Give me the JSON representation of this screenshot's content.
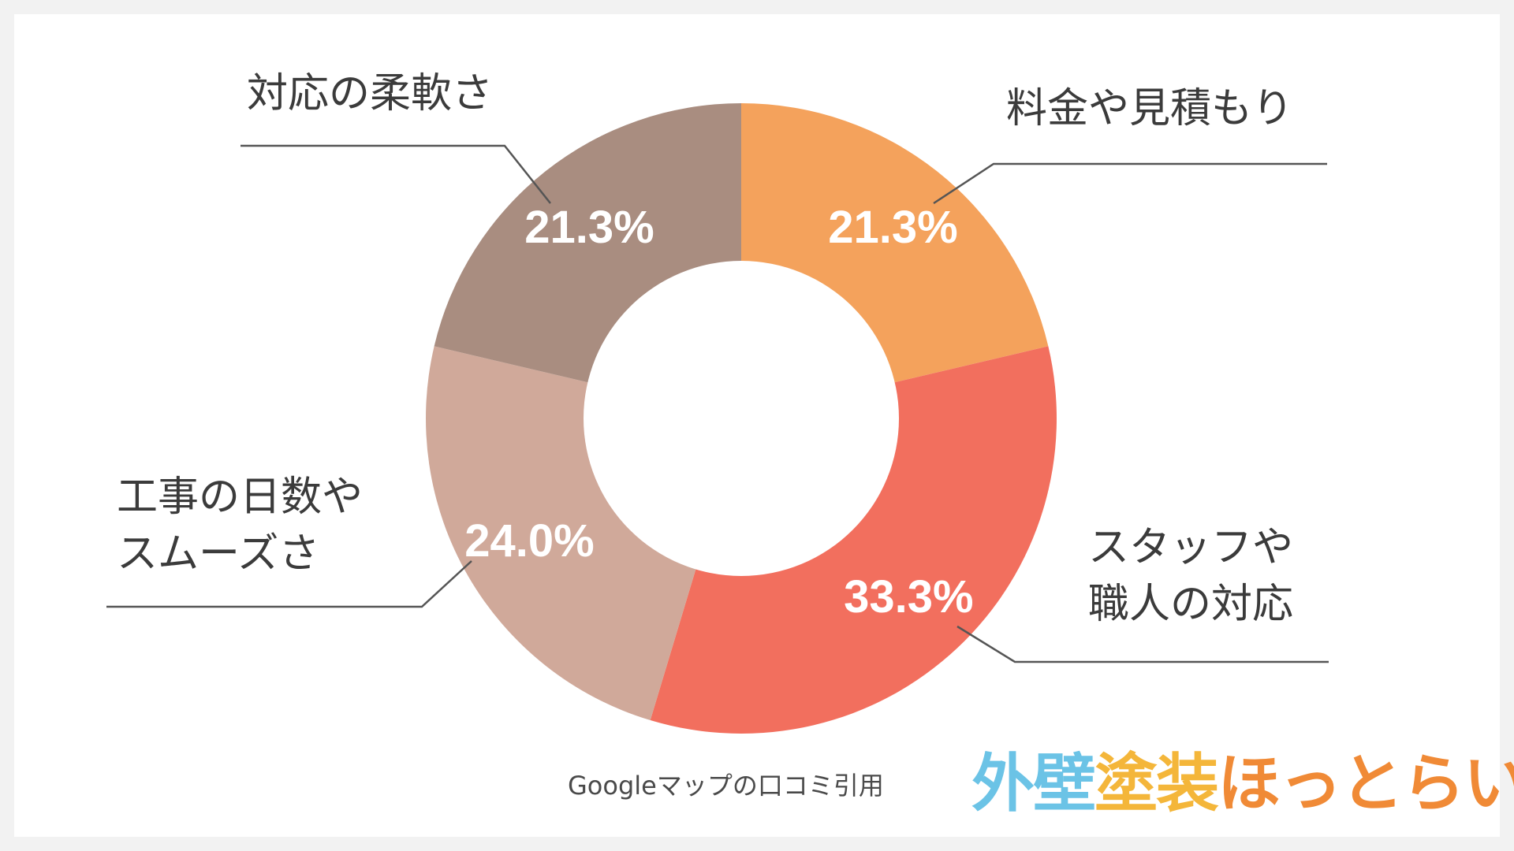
{
  "chart_data": {
    "type": "pie",
    "donut": true,
    "slices": [
      {
        "label_lines": [
          "料金や見積もり"
        ],
        "value": 21.3,
        "value_label": "21.3%",
        "color": "#f4a25c"
      },
      {
        "label_lines": [
          "スタッフや",
          "職人の対応"
        ],
        "value": 33.3,
        "value_label": "33.3%",
        "color": "#f26f5e"
      },
      {
        "label_lines": [
          "工事の日数や",
          "スムーズさ"
        ],
        "value": 24.0,
        "value_label": "24.0%",
        "color": "#d0a99a"
      },
      {
        "label_lines": [
          "対応の柔軟さ"
        ],
        "value": 21.3,
        "value_label": "21.3%",
        "color": "#a98d80"
      }
    ]
  },
  "source_note": "Googleマップの口コミ引用",
  "logo": {
    "segments": [
      {
        "text": "外壁",
        "color": "#6bc3e6"
      },
      {
        "text": "塗装",
        "color": "#f4b63a"
      },
      {
        "text": "ほっとらいん",
        "color": "#f08a36"
      }
    ]
  }
}
